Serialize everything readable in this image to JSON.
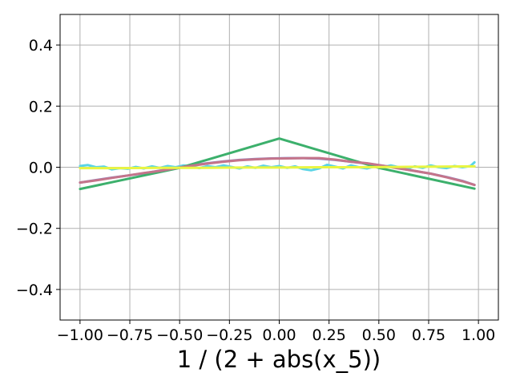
{
  "chart_data": {
    "type": "line",
    "title": "",
    "xlabel": "1 / (2 + abs(x_5))",
    "ylabel": "",
    "xlim": [
      -1.1,
      1.1
    ],
    "ylim": [
      -0.5,
      0.5
    ],
    "grid": true,
    "x_ticks": [
      -1.0,
      -0.75,
      -0.5,
      -0.25,
      0.0,
      0.25,
      0.5,
      0.75,
      1.0
    ],
    "x_tick_labels": [
      "−1.00",
      "−0.75",
      "−0.50",
      "−0.25",
      "0.00",
      "0.25",
      "0.50",
      "0.75",
      "1.00"
    ],
    "y_ticks": [
      -0.4,
      -0.2,
      0.0,
      0.2,
      0.4
    ],
    "y_tick_labels": [
      "−0.4",
      "−0.2",
      "0.0",
      "0.2",
      "0.4"
    ],
    "series": [
      {
        "color": "#5ad4e6",
        "values": [
          [
            -1.0,
            0.004
          ],
          [
            -0.96,
            0.007
          ],
          [
            -0.92,
            0.0
          ],
          [
            -0.88,
            0.002
          ],
          [
            -0.84,
            -0.007
          ],
          [
            -0.8,
            -0.003
          ],
          [
            -0.76,
            -0.005
          ],
          [
            -0.72,
            0.001
          ],
          [
            -0.68,
            -0.004
          ],
          [
            -0.64,
            0.003
          ],
          [
            -0.6,
            -0.002
          ],
          [
            -0.56,
            0.004
          ],
          [
            -0.52,
            0.0
          ],
          [
            -0.48,
            0.006
          ],
          [
            -0.44,
            0.002
          ],
          [
            -0.4,
            -0.003
          ],
          [
            -0.36,
            0.004
          ],
          [
            -0.32,
            0.0
          ],
          [
            -0.28,
            0.006
          ],
          [
            -0.24,
            0.001
          ],
          [
            -0.2,
            -0.004
          ],
          [
            -0.16,
            0.003
          ],
          [
            -0.12,
            -0.002
          ],
          [
            -0.08,
            0.005
          ],
          [
            -0.04,
            0.0
          ],
          [
            0.0,
            0.004
          ],
          [
            0.04,
            -0.002
          ],
          [
            0.08,
            0.003
          ],
          [
            0.12,
            -0.006
          ],
          [
            0.16,
            -0.01
          ],
          [
            0.2,
            -0.004
          ],
          [
            0.24,
            0.008
          ],
          [
            0.28,
            0.002
          ],
          [
            0.32,
            -0.004
          ],
          [
            0.36,
            0.006
          ],
          [
            0.4,
            0.0
          ],
          [
            0.44,
            -0.004
          ],
          [
            0.48,
            0.003
          ],
          [
            0.52,
            0.0
          ],
          [
            0.56,
            0.006
          ],
          [
            0.6,
            0.0
          ],
          [
            0.64,
            -0.005
          ],
          [
            0.68,
            0.003
          ],
          [
            0.72,
            -0.002
          ],
          [
            0.76,
            0.006
          ],
          [
            0.8,
            0.0
          ],
          [
            0.84,
            -0.003
          ],
          [
            0.88,
            0.004
          ],
          [
            0.92,
            0.0
          ],
          [
            0.96,
            0.004
          ],
          [
            0.98,
            0.016
          ]
        ]
      },
      {
        "color": "#8888cc",
        "values": [
          [
            -1.0,
            -0.05
          ],
          [
            -0.92,
            -0.042
          ],
          [
            -0.84,
            -0.034
          ],
          [
            -0.76,
            -0.027
          ],
          [
            -0.68,
            -0.02
          ],
          [
            -0.6,
            -0.011
          ],
          [
            -0.52,
            -0.003
          ],
          [
            -0.44,
            0.006
          ],
          [
            -0.36,
            0.013
          ],
          [
            -0.28,
            0.019
          ],
          [
            -0.2,
            0.024
          ],
          [
            -0.12,
            0.027
          ],
          [
            -0.04,
            0.029
          ],
          [
            0.04,
            0.03
          ],
          [
            0.12,
            0.03
          ],
          [
            0.2,
            0.028
          ],
          [
            0.28,
            0.024
          ],
          [
            0.36,
            0.018
          ],
          [
            0.44,
            0.012
          ],
          [
            0.52,
            0.005
          ],
          [
            0.6,
            -0.003
          ],
          [
            0.68,
            -0.012
          ],
          [
            0.76,
            -0.021
          ],
          [
            0.84,
            -0.032
          ],
          [
            0.92,
            -0.045
          ],
          [
            0.98,
            -0.058
          ]
        ]
      },
      {
        "color": "#3cb06c",
        "values": [
          [
            -1.0,
            -0.071
          ],
          [
            -0.5,
            -0.002
          ],
          [
            0.0,
            0.094
          ],
          [
            0.5,
            -0.002
          ],
          [
            0.98,
            -0.07
          ]
        ]
      },
      {
        "color": "#c4748a",
        "values": [
          [
            -1.0,
            -0.05
          ],
          [
            -0.92,
            -0.043
          ],
          [
            -0.84,
            -0.035
          ],
          [
            -0.76,
            -0.027
          ],
          [
            -0.68,
            -0.019
          ],
          [
            -0.6,
            -0.012
          ],
          [
            -0.52,
            -0.003
          ],
          [
            -0.44,
            0.005
          ],
          [
            -0.36,
            0.012
          ],
          [
            -0.28,
            0.018
          ],
          [
            -0.2,
            0.023
          ],
          [
            -0.12,
            0.026
          ],
          [
            -0.04,
            0.028
          ],
          [
            0.04,
            0.029
          ],
          [
            0.12,
            0.03
          ],
          [
            0.2,
            0.03
          ],
          [
            0.28,
            0.025
          ],
          [
            0.36,
            0.018
          ],
          [
            0.44,
            0.013
          ],
          [
            0.52,
            0.005
          ],
          [
            0.6,
            -0.004
          ],
          [
            0.68,
            -0.012
          ],
          [
            0.76,
            -0.021
          ],
          [
            0.84,
            -0.033
          ],
          [
            0.92,
            -0.046
          ],
          [
            0.98,
            -0.058
          ]
        ]
      },
      {
        "color": "#e9f542",
        "values": [
          [
            -1.0,
            -0.003
          ],
          [
            -0.8,
            -0.003
          ],
          [
            -0.6,
            -0.002
          ],
          [
            -0.4,
            -0.002
          ],
          [
            -0.2,
            -0.001
          ],
          [
            0.0,
            -0.001
          ],
          [
            0.2,
            0.0
          ],
          [
            0.4,
            0.0
          ],
          [
            0.6,
            0.001
          ],
          [
            0.8,
            0.002
          ],
          [
            0.98,
            0.003
          ]
        ]
      }
    ]
  }
}
